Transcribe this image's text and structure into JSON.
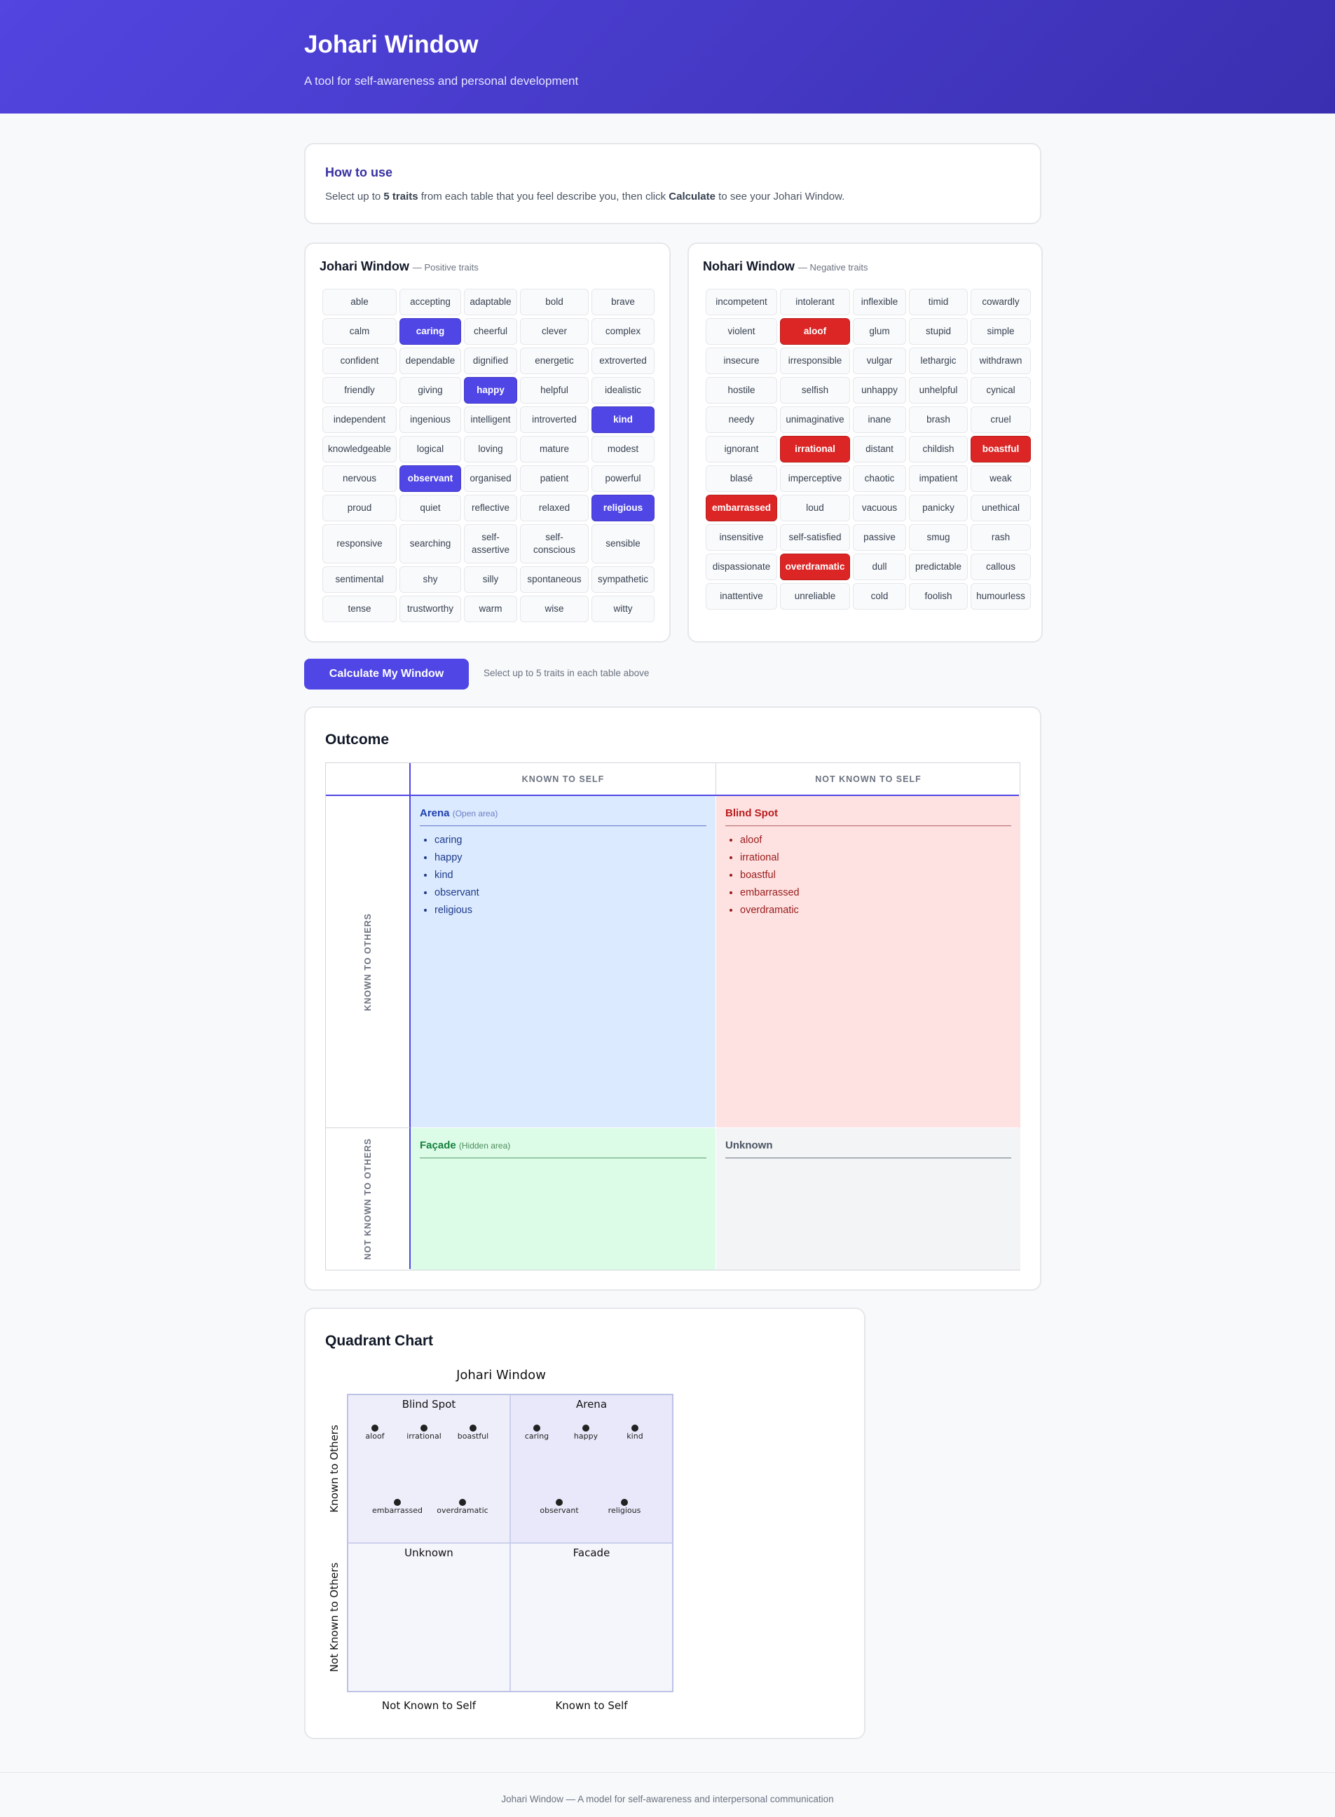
{
  "header": {
    "title": "Johari Window",
    "subtitle": "A tool for self-awareness and personal development"
  },
  "howto": {
    "title": "How to use",
    "text_pre": "Select up to ",
    "text_bold1": "5 traits",
    "text_mid": " from each table that you feel describe you, then click ",
    "text_bold2": "Calculate",
    "text_post": " to see your Johari Window."
  },
  "johari": {
    "title": "Johari Window",
    "subtitle": "— Positive traits",
    "traits": [
      "able",
      "accepting",
      "adaptable",
      "bold",
      "brave",
      "calm",
      "caring",
      "cheerful",
      "clever",
      "complex",
      "confident",
      "dependable",
      "dignified",
      "energetic",
      "extroverted",
      "friendly",
      "giving",
      "happy",
      "helpful",
      "idealistic",
      "independent",
      "ingenious",
      "intelligent",
      "introverted",
      "kind",
      "knowledgeable",
      "logical",
      "loving",
      "mature",
      "modest",
      "nervous",
      "observant",
      "organised",
      "patient",
      "powerful",
      "proud",
      "quiet",
      "reflective",
      "relaxed",
      "religious",
      "responsive",
      "searching",
      "self-assertive",
      "self-conscious",
      "sensible",
      "sentimental",
      "shy",
      "silly",
      "spontaneous",
      "sympathetic",
      "tense",
      "trustworthy",
      "warm",
      "wise",
      "witty"
    ],
    "selected": [
      "caring",
      "happy",
      "kind",
      "observant",
      "religious"
    ]
  },
  "nohari": {
    "title": "Nohari Window",
    "subtitle": "— Negative traits",
    "traits": [
      "incompetent",
      "intolerant",
      "inflexible",
      "timid",
      "cowardly",
      "violent",
      "aloof",
      "glum",
      "stupid",
      "simple",
      "insecure",
      "irresponsible",
      "vulgar",
      "lethargic",
      "withdrawn",
      "hostile",
      "selfish",
      "unhappy",
      "unhelpful",
      "cynical",
      "needy",
      "unimaginative",
      "inane",
      "brash",
      "cruel",
      "ignorant",
      "irrational",
      "distant",
      "childish",
      "boastful",
      "blasé",
      "imperceptive",
      "chaotic",
      "impatient",
      "weak",
      "embarrassed",
      "loud",
      "vacuous",
      "panicky",
      "unethical",
      "insensitive",
      "self-satisfied",
      "passive",
      "smug",
      "rash",
      "dispassionate",
      "overdramatic",
      "dull",
      "predictable",
      "callous",
      "inattentive",
      "unreliable",
      "cold",
      "foolish",
      "humourless"
    ],
    "selected": [
      "aloof",
      "irrational",
      "boastful",
      "embarrassed",
      "overdramatic"
    ]
  },
  "actions": {
    "calculate_label": "Calculate My Window",
    "hint": "Select up to 5 traits in each table above"
  },
  "outcome": {
    "title": "Outcome",
    "col_known": "KNOWN TO SELF",
    "col_not_known": "NOT KNOWN TO SELF",
    "row_known": "KNOWN TO OTHERS",
    "row_not_known": "NOT KNOWN TO OTHERS",
    "arena": {
      "title": "Arena",
      "sub": "(Open area)",
      "items": [
        "caring",
        "happy",
        "kind",
        "observant",
        "religious"
      ]
    },
    "blind": {
      "title": "Blind Spot",
      "items": [
        "aloof",
        "irrational",
        "boastful",
        "embarrassed",
        "overdramatic"
      ]
    },
    "facade": {
      "title": "Façade",
      "sub": "(Hidden area)",
      "items": []
    },
    "unknown": {
      "title": "Unknown",
      "items": []
    }
  },
  "quadrant_chart": {
    "section_title": "Quadrant Chart",
    "chart_title": "Johari Window",
    "x_labels": [
      "Not Known to Self",
      "Known to Self"
    ],
    "y_labels": [
      "Known to Others",
      "Not Known to Others"
    ],
    "quadrants": {
      "top_left": {
        "label": "Blind Spot",
        "points": [
          "aloof",
          "irrational",
          "boastful",
          "embarrassed",
          "overdramatic"
        ]
      },
      "top_right": {
        "label": "Arena",
        "points": [
          "caring",
          "happy",
          "kind",
          "observant",
          "religious"
        ]
      },
      "bottom_left": {
        "label": "Unknown",
        "points": []
      },
      "bottom_right": {
        "label": "Facade",
        "points": []
      }
    }
  },
  "footer": {
    "text": "Johari Window — A model for self-awareness and interpersonal communication"
  }
}
